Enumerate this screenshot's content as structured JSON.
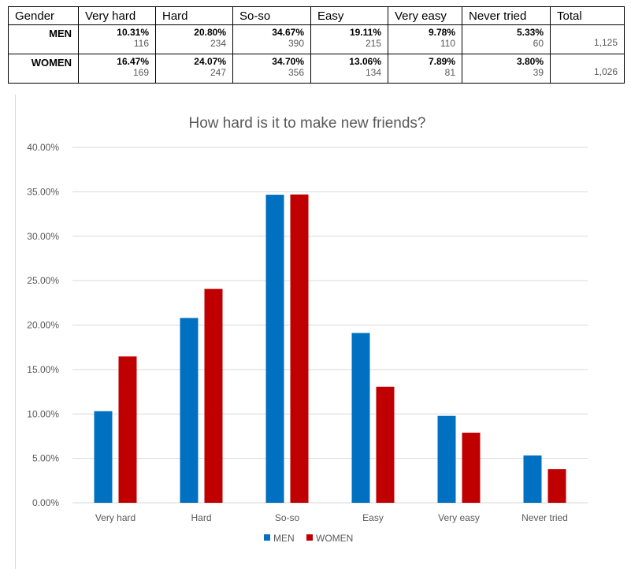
{
  "table": {
    "headers": [
      "Gender",
      "Very hard",
      "Hard",
      "So-so",
      "Easy",
      "Very easy",
      "Never tried",
      "Total"
    ],
    "rows": [
      {
        "label": "MEN",
        "pcts": [
          "10.31%",
          "20.80%",
          "34.67%",
          "19.11%",
          "9.78%",
          "5.33%"
        ],
        "counts": [
          "116",
          "234",
          "390",
          "215",
          "110",
          "60"
        ],
        "total": "1,125"
      },
      {
        "label": "WOMEN",
        "pcts": [
          "16.47%",
          "24.07%",
          "34.70%",
          "13.06%",
          "7.89%",
          "3.80%"
        ],
        "counts": [
          "169",
          "247",
          "356",
          "134",
          "81",
          "39"
        ],
        "total": "1,026"
      }
    ]
  },
  "colors": {
    "men": "#0070c0",
    "women": "#c00000",
    "grid": "#d9d9d9",
    "text": "#595959"
  },
  "chart_data": {
    "type": "bar",
    "title": "How hard is it to make new friends?",
    "categories": [
      "Very hard",
      "Hard",
      "So-so",
      "Easy",
      "Very easy",
      "Never tried"
    ],
    "series": [
      {
        "name": "MEN",
        "values": [
          10.31,
          20.8,
          34.67,
          19.11,
          9.78,
          5.33
        ]
      },
      {
        "name": "WOMEN",
        "values": [
          16.47,
          24.07,
          34.7,
          13.06,
          7.89,
          3.8
        ]
      }
    ],
    "y_ticks": [
      "0.00%",
      "5.00%",
      "10.00%",
      "15.00%",
      "20.00%",
      "25.00%",
      "30.00%",
      "35.00%",
      "40.00%"
    ],
    "ylim": [
      0,
      40
    ],
    "grid": true,
    "legend": "bottom"
  }
}
